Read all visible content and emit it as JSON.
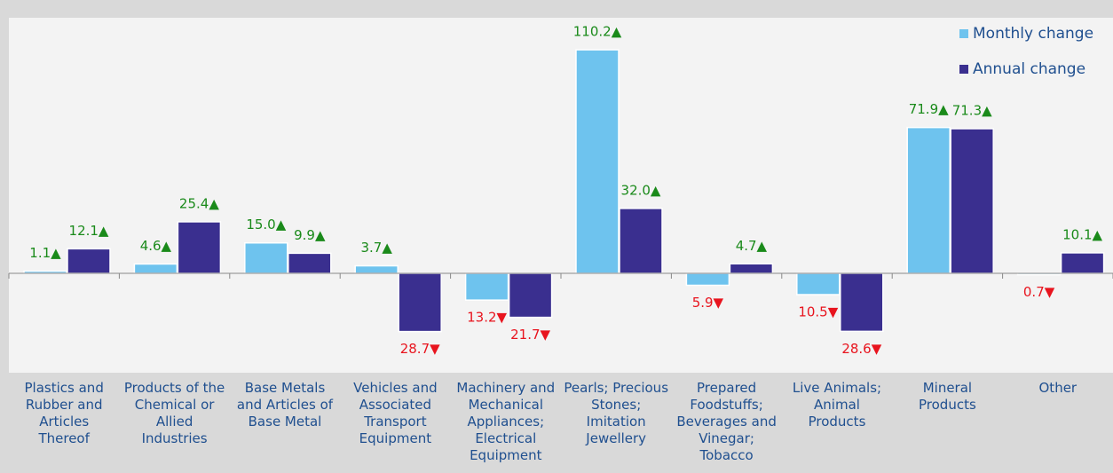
{
  "chart_data": {
    "type": "bar",
    "categories": [
      "Plastics and Rubber and Articles Thereof",
      "Products of the Chemical or Allied Industries",
      "Base Metals and Articles of Base Metal",
      "Vehicles and Associated Transport Equipment",
      "Machinery and Mechanical Appliances; Electrical Equipment",
      "Pearls; Precious Stones; Imitation Jewellery",
      "Prepared Foodstuffs; Beverages and Vinegar; Tobacco",
      "Live Animals; Animal Products",
      "Mineral Products",
      "Other"
    ],
    "series": [
      {
        "name": "Monthly change",
        "color": "#6ec3ee",
        "values": [
          1.1,
          4.6,
          15.0,
          3.7,
          -13.2,
          110.2,
          -5.9,
          -10.5,
          71.9,
          -0.7
        ],
        "value_labels": [
          "1.1▲",
          "4.6▲",
          "15.0▲",
          "3.7▲",
          "13.2▼",
          "110.2▲",
          "5.9▼",
          "10.5▼",
          "71.9▲",
          "0.7▼"
        ]
      },
      {
        "name": "Annual change",
        "color": "#3a2f8f",
        "values": [
          12.1,
          25.4,
          9.9,
          -28.7,
          -21.7,
          32.0,
          4.7,
          -28.6,
          71.3,
          10.1
        ],
        "value_labels": [
          "12.1▲",
          "25.4▲",
          "9.9▲",
          "28.7▼",
          "21.7▼",
          "32.0▲",
          "4.7▲",
          "28.6▼",
          "71.3▲",
          "10.1▲"
        ]
      }
    ],
    "ylim": [
      -49,
      126
    ],
    "legend": "top-right",
    "positive_color": "#1a8a1a",
    "negative_color": "#e8141e"
  }
}
